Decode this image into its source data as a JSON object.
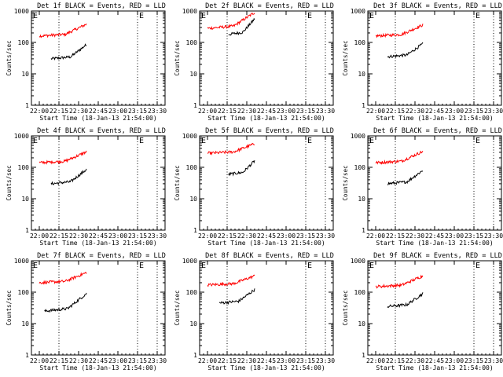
{
  "chart_data": [
    {
      "type": "line",
      "title": "Det 1f BLACK = Events, RED = LLD",
      "xlabel": "Start Time (18-Jan-13 21:54:00)",
      "ylabel": "Counts/sec",
      "x_ticks": [
        "22:00",
        "22:15",
        "22:30",
        "22:45",
        "23:00",
        "23:15",
        "23:30"
      ],
      "y_ticks": [
        "1",
        "10",
        "100",
        "1000"
      ],
      "ylim": [
        1,
        1000
      ],
      "yscale": "log",
      "annotations": [
        "E",
        "E"
      ],
      "series": [
        {
          "color": "#000000",
          "start_min": 9,
          "end_min": 36,
          "start_value": 30,
          "end_value": 85
        },
        {
          "color": "#ff0000",
          "start_min": 0,
          "end_min": 36,
          "start_value": 160,
          "end_value": 380
        }
      ]
    },
    {
      "type": "line",
      "title": "Det 2f BLACK = Events, RED = LLD",
      "xlabel": "Start Time (18-Jan-13 21:54:00)",
      "ylabel": "Counts/sec",
      "x_ticks": [
        "22:00",
        "22:15",
        "22:30",
        "22:45",
        "23:00",
        "23:15",
        "23:30"
      ],
      "y_ticks": [
        "1",
        "10",
        "100",
        "1000"
      ],
      "ylim": [
        1,
        1000
      ],
      "yscale": "log",
      "annotations": [
        "E",
        "E"
      ],
      "series": [
        {
          "color": "#000000",
          "start_min": 16,
          "end_min": 36,
          "start_value": 180,
          "end_value": 560
        },
        {
          "color": "#ff0000",
          "start_min": 0,
          "end_min": 36,
          "start_value": 280,
          "end_value": 900
        }
      ]
    },
    {
      "type": "line",
      "title": "Det 3f BLACK = Events, RED = LLD",
      "xlabel": "Start Time (18-Jan-13 21:54:00)",
      "ylabel": "Counts/sec",
      "x_ticks": [
        "22:00",
        "22:15",
        "22:30",
        "22:45",
        "23:00",
        "23:15",
        "23:30"
      ],
      "y_ticks": [
        "1",
        "10",
        "100",
        "1000"
      ],
      "ylim": [
        1,
        1000
      ],
      "yscale": "log",
      "annotations": [
        "E",
        "E"
      ],
      "series": [
        {
          "color": "#000000",
          "start_min": 9,
          "end_min": 36,
          "start_value": 35,
          "end_value": 90
        },
        {
          "color": "#ff0000",
          "start_min": 0,
          "end_min": 36,
          "start_value": 160,
          "end_value": 360
        }
      ]
    },
    {
      "type": "line",
      "title": "Det 4f BLACK = Events, RED = LLD",
      "xlabel": "Start Time (18-Jan-13 21:54:00)",
      "ylabel": "Counts/sec",
      "x_ticks": [
        "22:00",
        "22:15",
        "22:30",
        "22:45",
        "23:00",
        "23:15",
        "23:30"
      ],
      "y_ticks": [
        "1",
        "10",
        "100",
        "1000"
      ],
      "ylim": [
        1,
        1000
      ],
      "yscale": "log",
      "annotations": [
        "E",
        "E"
      ],
      "series": [
        {
          "color": "#000000",
          "start_min": 9,
          "end_min": 36,
          "start_value": 30,
          "end_value": 85
        },
        {
          "color": "#ff0000",
          "start_min": 0,
          "end_min": 36,
          "start_value": 140,
          "end_value": 310
        }
      ]
    },
    {
      "type": "line",
      "title": "Det 5f BLACK = Events, RED = LLD",
      "xlabel": "Start Time (18-Jan-13 21:54:00)",
      "ylabel": "Counts/sec",
      "x_ticks": [
        "22:00",
        "22:15",
        "22:30",
        "22:45",
        "23:00",
        "23:15",
        "23:30"
      ],
      "y_ticks": [
        "1",
        "10",
        "100",
        "1000"
      ],
      "ylim": [
        1,
        1000
      ],
      "yscale": "log",
      "annotations": [
        "E",
        "E"
      ],
      "series": [
        {
          "color": "#000000",
          "start_min": 16,
          "end_min": 36,
          "start_value": 60,
          "end_value": 160
        },
        {
          "color": "#ff0000",
          "start_min": 0,
          "end_min": 36,
          "start_value": 280,
          "end_value": 560
        }
      ]
    },
    {
      "type": "line",
      "title": "Det 6f BLACK = Events, RED = LLD",
      "xlabel": "Start Time (18-Jan-13 21:54:00)",
      "ylabel": "Counts/sec",
      "x_ticks": [
        "22:00",
        "22:15",
        "22:30",
        "22:45",
        "23:00",
        "23:15",
        "23:30"
      ],
      "y_ticks": [
        "1",
        "10",
        "100",
        "1000"
      ],
      "ylim": [
        1,
        1000
      ],
      "yscale": "log",
      "annotations": [
        "E",
        "E"
      ],
      "series": [
        {
          "color": "#000000",
          "start_min": 9,
          "end_min": 36,
          "start_value": 30,
          "end_value": 80
        },
        {
          "color": "#ff0000",
          "start_min": 0,
          "end_min": 36,
          "start_value": 140,
          "end_value": 320
        }
      ]
    },
    {
      "type": "line",
      "title": "Det 7f BLACK = Events, RED = LLD",
      "xlabel": "Start Time (18-Jan-13 21:54:00)",
      "ylabel": "Counts/sec",
      "x_ticks": [
        "22:00",
        "22:15",
        "22:30",
        "22:45",
        "23:00",
        "23:15",
        "23:30"
      ],
      "y_ticks": [
        "1",
        "10",
        "100",
        "1000"
      ],
      "ylim": [
        1,
        1000
      ],
      "yscale": "log",
      "annotations": [
        "E",
        "E"
      ],
      "series": [
        {
          "color": "#000000",
          "start_min": 4,
          "end_min": 36,
          "start_value": 25,
          "end_value": 90
        },
        {
          "color": "#ff0000",
          "start_min": 0,
          "end_min": 36,
          "start_value": 200,
          "end_value": 420
        }
      ]
    },
    {
      "type": "line",
      "title": "Det 8f BLACK = Events, RED = LLD",
      "xlabel": "Start Time (18-Jan-13 21:54:00)",
      "ylabel": "Counts/sec",
      "x_ticks": [
        "22:00",
        "22:15",
        "22:30",
        "22:45",
        "23:00",
        "23:15",
        "23:30"
      ],
      "y_ticks": [
        "1",
        "10",
        "100",
        "1000"
      ],
      "ylim": [
        1,
        1000
      ],
      "yscale": "log",
      "annotations": [
        "E",
        "E"
      ],
      "series": [
        {
          "color": "#000000",
          "start_min": 9,
          "end_min": 36,
          "start_value": 45,
          "end_value": 120
        },
        {
          "color": "#ff0000",
          "start_min": 0,
          "end_min": 36,
          "start_value": 170,
          "end_value": 330
        }
      ]
    },
    {
      "type": "line",
      "title": "Det 9f BLACK = Events, RED = LLD",
      "xlabel": "Start Time (18-Jan-13 21:54:00)",
      "ylabel": "Counts/sec",
      "x_ticks": [
        "22:00",
        "22:15",
        "22:30",
        "22:45",
        "23:00",
        "23:15",
        "23:30"
      ],
      "y_ticks": [
        "1",
        "10",
        "100",
        "1000"
      ],
      "ylim": [
        1,
        1000
      ],
      "yscale": "log",
      "annotations": [
        "E",
        "E"
      ],
      "series": [
        {
          "color": "#000000",
          "start_min": 9,
          "end_min": 36,
          "start_value": 35,
          "end_value": 90
        },
        {
          "color": "#ff0000",
          "start_min": 0,
          "end_min": 36,
          "start_value": 150,
          "end_value": 330
        }
      ]
    }
  ],
  "theme": {
    "background": "#ffffff",
    "axis_color": "#000000",
    "events_color": "#000000",
    "lld_color": "#ff0000"
  }
}
